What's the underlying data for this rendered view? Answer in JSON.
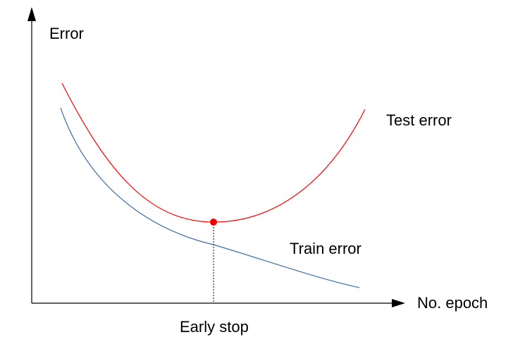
{
  "labels": {
    "y_axis": "Error",
    "x_axis": "No. epoch",
    "test_curve": "Test error",
    "train_curve": "Train error",
    "marker": "Early stop"
  },
  "colors": {
    "test_curve": "#ff0000",
    "train_curve": "#3e6fa8",
    "axes": "#000000",
    "marker_point": "#ee0000"
  },
  "marker_style": "dotted vertical line from curve minimum to x-axis"
}
